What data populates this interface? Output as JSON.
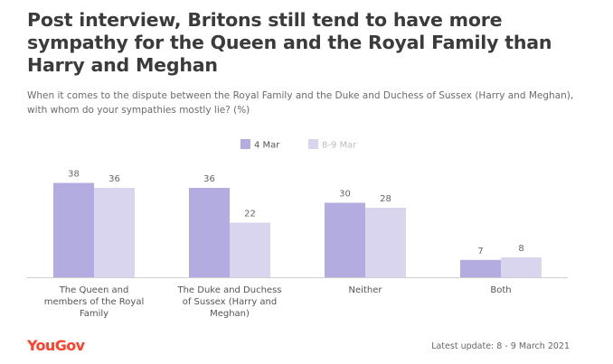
{
  "title": "Post interview, Britons still tend to have more sympathy for the Queen and the Royal Family than Harry and Meghan",
  "subtitle": "When it comes to the dispute between the Royal Family and the Duke and Duchess of Sussex (Harry and Meghan), with whom do your sympathies mostly lie? (%)",
  "brand": "YouGov",
  "update": "Latest update: 8 - 9 March 2021",
  "colors": {
    "series1": "#b3ace0",
    "series2": "#d9d5ef",
    "brand": "#ff412c"
  },
  "chart_data": {
    "type": "bar",
    "categories": [
      [
        "The Queen and",
        "members of the Royal",
        "Family"
      ],
      [
        "The Duke and Duchess",
        "of Sussex (Harry and",
        "Meghan)"
      ],
      [
        "Neither"
      ],
      [
        "Both"
      ]
    ],
    "series": [
      {
        "name": "4 Mar",
        "values": [
          38,
          36,
          30,
          7
        ]
      },
      {
        "name": "8-9 Mar",
        "values": [
          36,
          22,
          28,
          8
        ]
      }
    ],
    "ylim": [
      0,
      40
    ],
    "legend": "top-center",
    "grid": false
  }
}
